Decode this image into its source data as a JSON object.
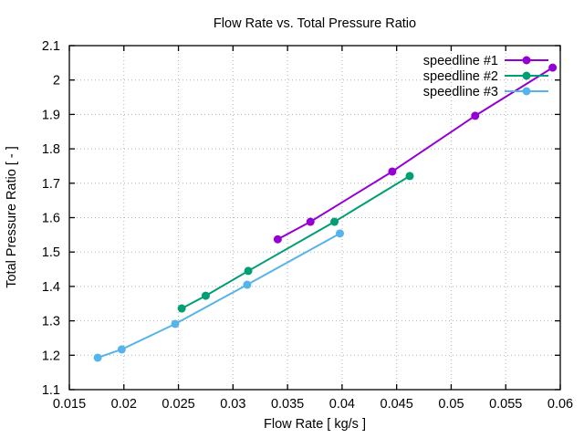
{
  "chart_data": {
    "type": "line",
    "title": "Flow Rate vs. Total Pressure Ratio",
    "xlabel": "Flow Rate [ kg/s ]",
    "ylabel": "Total Pressure Ratio [ - ]",
    "xlim": [
      0.015,
      0.06
    ],
    "ylim": [
      1.1,
      2.1
    ],
    "xticks": [
      0.015,
      0.02,
      0.025,
      0.03,
      0.035,
      0.04,
      0.045,
      0.05,
      0.055,
      0.06
    ],
    "xtick_labels": [
      "0.015",
      "0.02",
      "0.025",
      "0.03",
      "0.035",
      "0.04",
      "0.045",
      "0.05",
      "0.055",
      "0.06"
    ],
    "yticks": [
      1.1,
      1.2,
      1.3,
      1.4,
      1.5,
      1.6,
      1.7,
      1.8,
      1.9,
      2.0,
      2.1
    ],
    "ytick_labels": [
      "1.1",
      "1.2",
      "1.3",
      "1.4",
      "1.5",
      "1.6",
      "1.7",
      "1.8",
      "1.9",
      "2",
      "2.1"
    ],
    "grid": true,
    "grid_style": "dotted",
    "grid_color": "#b3b3b3",
    "border_color": "#000000",
    "legend_position": "top-right-inside",
    "marker": "filled-circle",
    "series": [
      {
        "name": "speedline #1",
        "color": "#9400d3",
        "points": [
          [
            0.0341,
            1.537
          ],
          [
            0.0371,
            1.588
          ],
          [
            0.0446,
            1.734
          ],
          [
            0.0522,
            1.896
          ],
          [
            0.0593,
            2.036
          ]
        ]
      },
      {
        "name": "speedline #2",
        "color": "#009e73",
        "points": [
          [
            0.0253,
            1.336
          ],
          [
            0.0275,
            1.373
          ],
          [
            0.0314,
            1.445
          ],
          [
            0.0393,
            1.588
          ],
          [
            0.0462,
            1.721
          ]
        ]
      },
      {
        "name": "speedline #3",
        "color": "#56b4e9",
        "points": [
          [
            0.0176,
            1.193
          ],
          [
            0.0198,
            1.217
          ],
          [
            0.0247,
            1.291
          ],
          [
            0.0313,
            1.405
          ],
          [
            0.0398,
            1.554
          ]
        ]
      }
    ]
  }
}
